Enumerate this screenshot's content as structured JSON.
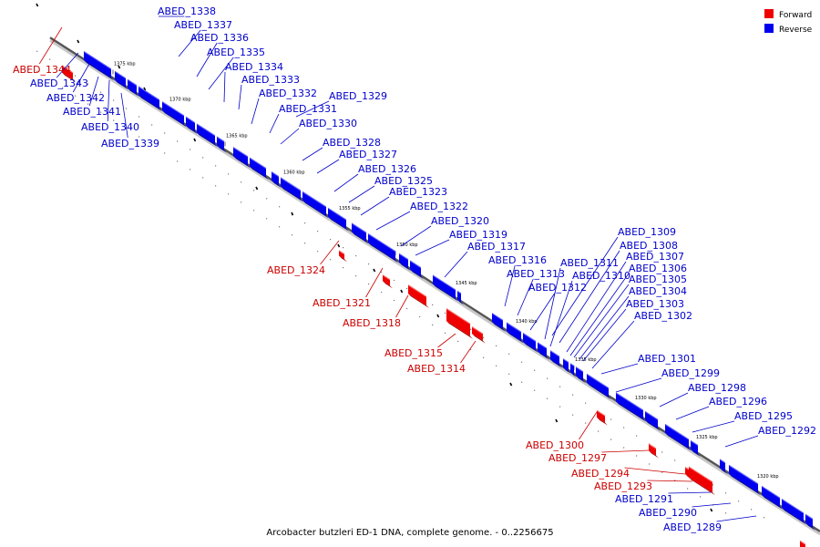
{
  "legend": {
    "forward_label": "Forward",
    "reverse_label": "Reverse",
    "forward_color": "#ee0000",
    "reverse_color": "#0000ee"
  },
  "caption": "Arcobacter butzleri ED-1 DNA, complete genome. - 0..2256675",
  "kbp_ticks": [
    "1375 kbp",
    "1370 kbp",
    "1365 kbp",
    "1360 kbp",
    "1355 kbp",
    "1350 kbp",
    "1345 kbp",
    "1340 kbp",
    "1335 kbp",
    "1330 kbp",
    "1325 kbp",
    "1320 kbp"
  ],
  "forward_genes": [
    "ABED_1344",
    "ABED_1324",
    "ABED_1321",
    "ABED_1318",
    "ABED_1315",
    "ABED_1314",
    "ABED_1300",
    "ABED_1297",
    "ABED_1294",
    "ABED_1293"
  ],
  "reverse_genes": [
    "ABED_1343",
    "ABED_1342",
    "ABED_1341",
    "ABED_1340",
    "ABED_1339",
    "ABED_1338",
    "ABED_1337",
    "ABED_1336",
    "ABED_1335",
    "ABED_1334",
    "ABED_1333",
    "ABED_1332",
    "ABED_1331",
    "ABED_1330",
    "ABED_1329",
    "ABED_1328",
    "ABED_1327",
    "ABED_1326",
    "ABED_1325",
    "ABED_1323",
    "ABED_1322",
    "ABED_1320",
    "ABED_1319",
    "ABED_1317",
    "ABED_1316",
    "ABED_1313",
    "ABED_1312",
    "ABED_1311",
    "ABED_1310",
    "ABED_1309",
    "ABED_1308",
    "ABED_1307",
    "ABED_1306",
    "ABED_1305",
    "ABED_1304",
    "ABED_1303",
    "ABED_1302",
    "ABED_1301",
    "ABED_1299",
    "ABED_1298",
    "ABED_1296",
    "ABED_1295",
    "ABED_1292",
    "ABED_1291",
    "ABED_1290",
    "ABED_1289"
  ]
}
